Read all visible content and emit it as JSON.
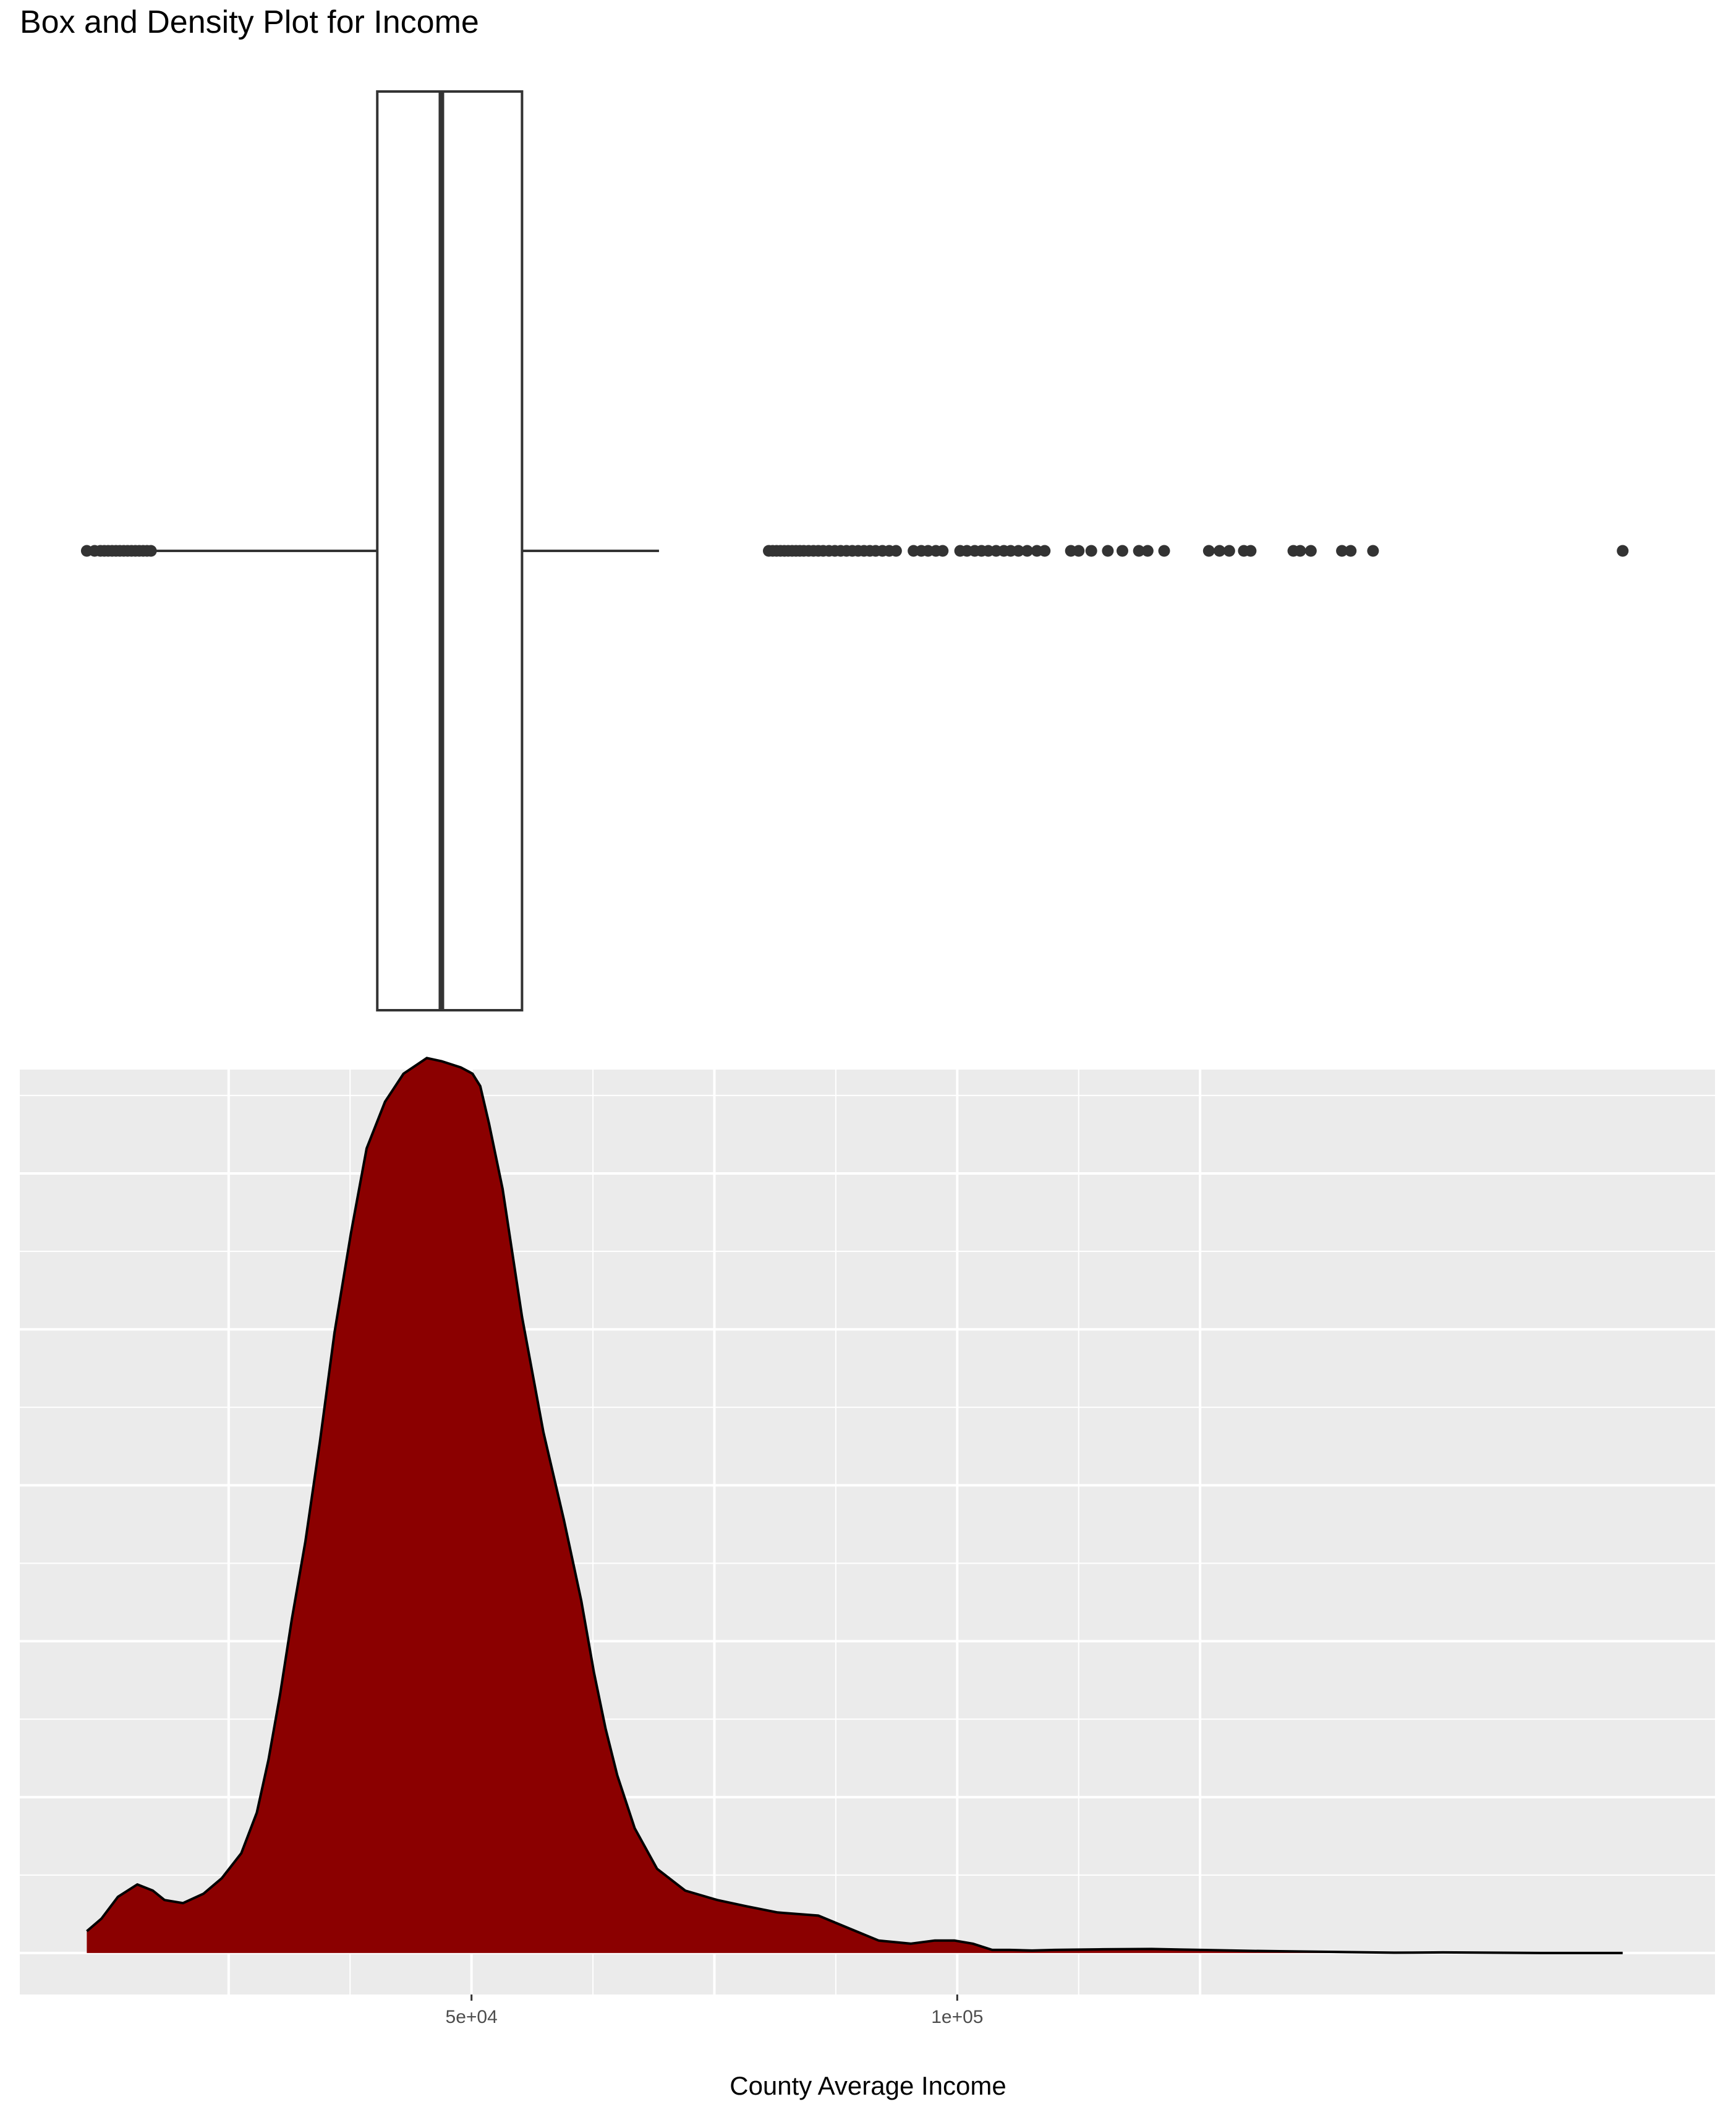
{
  "title": "Box and Density Plot for Income",
  "chart_data": [
    {
      "type": "box",
      "title": "Box and Density Plot for Income",
      "variable": "County Average Income",
      "box": {
        "q1": 40300,
        "median": 46900,
        "q3": 55200,
        "whisker_low": 17500,
        "whisker_high": 69300
      },
      "box_fill": "#ffffff",
      "line_color": "#333333",
      "outliers": [
        10400,
        11200,
        11800,
        12200,
        12600,
        13000,
        13400,
        13800,
        14200,
        14600,
        15000,
        15400,
        15800,
        16200,
        16600,
        17000,
        80600,
        81000,
        81400,
        81800,
        82200,
        82600,
        83000,
        83400,
        83800,
        84200,
        84700,
        85200,
        85700,
        86200,
        86800,
        87400,
        88000,
        88600,
        89200,
        89800,
        90400,
        91000,
        91600,
        92300,
        93000,
        93700,
        95500,
        96300,
        97000,
        97800,
        98500,
        100300,
        101000,
        101800,
        102500,
        103200,
        104000,
        104800,
        105500,
        106300,
        107200,
        108200,
        109000,
        111700,
        112500,
        113800,
        115500,
        117000,
        118700,
        119600,
        121300,
        125900,
        127000,
        128000,
        129500,
        130200,
        134600,
        135300,
        136400,
        139600,
        140500,
        142800,
        168500
      ]
    },
    {
      "type": "area",
      "variable": "County Average Income",
      "xlabel": "County Average Income",
      "ylabel": "",
      "x_ticks": [
        {
          "value": 50000,
          "label": "5e+04"
        },
        {
          "value": 100000,
          "label": "1e+05"
        }
      ],
      "xlim": [
        3500,
        178000
      ],
      "ylim": [
        -1.33e-06,
        2.833e-05
      ],
      "grid": true,
      "fill": "#8B0000",
      "line_color": "#000000",
      "x": [
        10400,
        11900,
        13600,
        15600,
        17200,
        18400,
        20300,
        22400,
        24300,
        26300,
        27900,
        29100,
        30300,
        31500,
        32900,
        34400,
        35900,
        37600,
        39200,
        41100,
        43000,
        45400,
        46900,
        48900,
        50100,
        50900,
        51800,
        53200,
        55200,
        57400,
        59500,
        61300,
        62600,
        63800,
        65000,
        66800,
        69100,
        72000,
        75300,
        78300,
        81500,
        85700,
        88800,
        91900,
        95200,
        97700,
        99700,
        101600,
        103600,
        105400,
        107700,
        110000,
        115000,
        120000,
        125000,
        130000,
        135000,
        140000,
        145000,
        150000,
        155000,
        160000,
        165000,
        168500
      ],
      "y": [
        7e-07,
        1.1e-06,
        1.8e-06,
        2.2e-06,
        2e-06,
        1.7e-06,
        1.6e-06,
        1.9e-06,
        2.4e-06,
        3.2e-06,
        4.5e-06,
        6.2e-06,
        8.3e-06,
        1.07e-05,
        1.32e-05,
        1.64e-05,
        1.99e-05,
        2.31e-05,
        2.58e-05,
        2.73e-05,
        2.82e-05,
        2.87e-05,
        2.86e-05,
        2.84e-05,
        2.82e-05,
        2.78e-05,
        2.66e-05,
        2.45e-05,
        2.04e-05,
        1.67e-05,
        1.39e-05,
        1.13e-05,
        9e-06,
        7.2e-06,
        5.7e-06,
        4e-06,
        2.7e-06,
        2e-06,
        1.7e-06,
        1.5e-06,
        1.3e-06,
        1.2e-06,
        8e-07,
        4e-07,
        3e-07,
        4e-07,
        4e-07,
        3e-07,
        1e-07,
        1e-07,
        8e-08,
        1e-07,
        1.2e-07,
        1.3e-07,
        1e-07,
        7e-08,
        5e-08,
        3e-08,
        1e-08,
        2e-08,
        1e-08,
        0.0,
        0.0,
        0.0
      ]
    }
  ]
}
